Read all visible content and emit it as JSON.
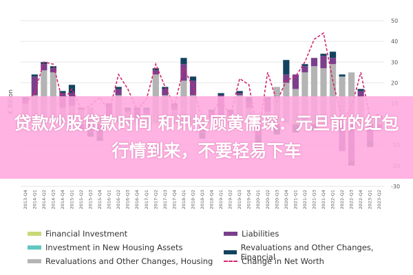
{
  "overlay_text": "贷款炒股贷款时间 和讯投顾黄儒琛：元旦前的红包行情到来，不要轻易下车",
  "chart_data": {
    "type": "bar",
    "stacked": true,
    "ylabel": "€ Billion",
    "ylim": [
      -30,
      50
    ],
    "yticks": [
      -30,
      -20,
      -10,
      0,
      10,
      20,
      30,
      40,
      50
    ],
    "grid": true,
    "legend_position": "bottom",
    "categories": [
      "2013-Q4",
      "2014-Q1",
      "2014-Q2",
      "2014-Q3",
      "2014-Q4",
      "2015-Q1",
      "2015-Q2",
      "2015-Q3",
      "2015-Q4",
      "2016-Q1",
      "2016-Q2",
      "2016-Q3",
      "2016-Q4",
      "2017-Q1",
      "2017-Q2",
      "2017-Q3",
      "2017-Q4",
      "2018-Q1",
      "2018-Q2",
      "2018-Q3",
      "2018-Q4",
      "2019-Q1",
      "2019-Q2",
      "2019-Q3",
      "2019-Q4",
      "2020-Q1",
      "2020-Q2",
      "2020-Q3",
      "2020-Q4",
      "2021-Q1",
      "2021-Q2",
      "2021-Q3",
      "2021-Q4",
      "2022-Q1",
      "2022-Q2",
      "2022-Q3",
      "2022-Q4",
      "2023-Q1",
      "2023-Q2"
    ],
    "series": [
      {
        "name": "Financial Investment",
        "type": "bar",
        "color": "#c8d97a",
        "values": [
          1,
          1,
          1,
          1,
          1,
          1,
          1,
          1,
          1,
          1,
          1,
          1,
          1,
          1,
          1,
          1,
          1,
          1,
          1,
          1,
          1,
          1,
          1,
          1,
          1,
          1,
          1,
          1,
          1,
          2,
          2,
          2,
          2,
          2,
          2,
          2,
          2,
          1,
          1
        ]
      },
      {
        "name": "Investment in New Housing Assets",
        "type": "bar",
        "color": "#63c6c0",
        "values": [
          1,
          1,
          1,
          1,
          1,
          1,
          1,
          1,
          1,
          1,
          1,
          1,
          1,
          1,
          1,
          1,
          1,
          1,
          1,
          1,
          1,
          1,
          1,
          1,
          1,
          1,
          1,
          1,
          1,
          1,
          1,
          1,
          1,
          1,
          1,
          1,
          1,
          1,
          1
        ]
      },
      {
        "name": "Revaluations and Other Changes, Housing",
        "type": "bar",
        "color": "#b4b4b4",
        "values": [
          8,
          12,
          24,
          23,
          6,
          7,
          5,
          6,
          2,
          2,
          12,
          4,
          1,
          3,
          22,
          12,
          5,
          19,
          12,
          1,
          1,
          1,
          2,
          12,
          6,
          2,
          4,
          16,
          18,
          14,
          22,
          25,
          24,
          26,
          20,
          22,
          10,
          2,
          1
        ]
      },
      {
        "name": "Liabilities",
        "type": "bar",
        "color": "#7b3f8c",
        "values": [
          2,
          9,
          3,
          2,
          7,
          6,
          -3,
          -4,
          -6,
          5,
          3,
          1,
          4,
          2,
          2,
          3,
          2,
          8,
          7,
          -4,
          3,
          11,
          2,
          1,
          3,
          -5,
          6,
          -2,
          4,
          7,
          3,
          4,
          6,
          3,
          -13,
          -18,
          3,
          -8,
          -2
        ]
      },
      {
        "name": "Revaluations and Other Changes, Financial",
        "type": "bar",
        "color": "#12435e",
        "values": [
          1,
          1,
          1,
          1,
          1,
          4,
          1,
          -2,
          -2,
          1,
          1,
          1,
          1,
          1,
          1,
          1,
          1,
          3,
          2,
          -3,
          1,
          1,
          1,
          1,
          2,
          -9,
          1,
          -3,
          7,
          -4,
          1,
          -3,
          1,
          3,
          1,
          -2,
          1,
          -3,
          1
        ]
      },
      {
        "name": "Change in Net Worth",
        "type": "line",
        "color": "#d6236f",
        "values": [
          10,
          15,
          30,
          29,
          11,
          17,
          7,
          9,
          13,
          6,
          24,
          17,
          7,
          12,
          29,
          18,
          9,
          27,
          18,
          2,
          5,
          12,
          4,
          22,
          19,
          -6,
          25,
          11,
          21,
          23,
          30,
          41,
          44,
          21,
          2,
          8,
          25,
          3,
          5
        ]
      }
    ]
  }
}
